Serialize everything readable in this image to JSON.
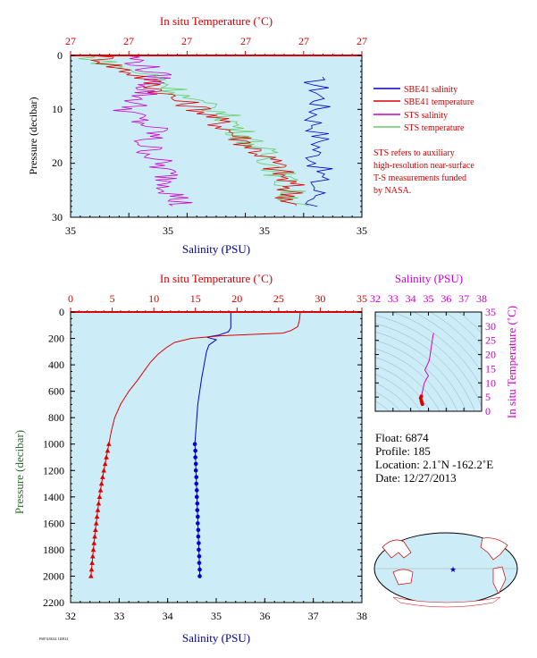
{
  "top_panel": {
    "top_axis_title": "In situ Temperature (˚C)",
    "top_tick_labels": [
      "27",
      "27",
      "27",
      "27",
      "27",
      "27"
    ],
    "left_axis_title": "Pressure (decibar)",
    "y_tick_labels": [
      "0",
      "10",
      "20",
      "30"
    ],
    "bottom_axis_title": "Salinity (PSU)",
    "bottom_tick_labels": [
      "35",
      "35",
      "35",
      "35"
    ],
    "legend": {
      "sbe_salinity": "SBE41 salinity",
      "sbe_temperature": "SBE41 temperature",
      "sts_salinity": "STS salinity",
      "sts_temperature": "STS temperature"
    },
    "note_lines": [
      "STS refers to auxiliary",
      "high-resolution near-surface",
      "T-S measurements funded",
      "by NASA."
    ]
  },
  "main_panel": {
    "top_axis_title": "In situ Temperature (˚C)",
    "top_tick_labels": [
      "0",
      "5",
      "10",
      "15",
      "20",
      "25",
      "30",
      "35"
    ],
    "left_axis_title": "Pressure (decibar)",
    "y_tick_labels": [
      "0",
      "200",
      "400",
      "600",
      "800",
      "1000",
      "1200",
      "1400",
      "1600",
      "1800",
      "2000",
      "2200"
    ],
    "bottom_axis_title": "Salinity (PSU)",
    "bottom_tick_labels": [
      "32",
      "33",
      "34",
      "35",
      "36",
      "37",
      "38"
    ]
  },
  "ts_panel": {
    "top_axis_title": "Salinity (PSU)",
    "top_tick_labels": [
      "32",
      "33",
      "34",
      "35",
      "36",
      "37",
      "38"
    ],
    "right_axis_title": "In situ Temperature (˚C)",
    "right_tick_labels": [
      "0",
      "5",
      "10",
      "15",
      "20",
      "25",
      "30",
      "35"
    ]
  },
  "info": {
    "float": "Float:  6874",
    "profile": "Profile:  185",
    "location": "Location:  2.1˚N  -162.2˚E",
    "date": "Date:  12/27/2013"
  },
  "footer_code": "F6874/6024 120814",
  "colors": {
    "plot_bg": "#ccedf7",
    "salinity": "#0000cc",
    "temperature": "#dd0000",
    "sts_salinity": "#cc00cc",
    "sts_temperature": "#66cc66",
    "axis_title_red": "#cc0000",
    "axis_title_green": "#2e6b2e",
    "axis_title_magenta": "#cc00cc"
  },
  "chart_data": [
    {
      "type": "line",
      "panel": "main_profile",
      "y_label": "Pressure (decibar)",
      "ylim": [
        0,
        2200
      ],
      "y_reversed": true,
      "series": [
        {
          "name": "Salinity (PSU)",
          "axis": "bottom",
          "xlim": [
            32,
            38
          ],
          "pressure": [
            0,
            60,
            120,
            150,
            175,
            190,
            210,
            250,
            300,
            400,
            500,
            600,
            700,
            800,
            900,
            1000,
            1050,
            1100,
            1150,
            1200,
            1250,
            1300,
            1350,
            1400,
            1450,
            1500,
            1550,
            1600,
            1650,
            1700,
            1750,
            1800,
            1850,
            1900,
            1950,
            2000
          ],
          "values": [
            35.3,
            35.3,
            35.3,
            35.25,
            35.05,
            34.8,
            35.0,
            34.85,
            34.8,
            34.75,
            34.7,
            34.66,
            34.62,
            34.6,
            34.58,
            34.56,
            34.57,
            34.57,
            34.58,
            34.58,
            34.59,
            34.59,
            34.6,
            34.6,
            34.61,
            34.61,
            34.62,
            34.62,
            34.63,
            34.63,
            34.64,
            34.64,
            34.65,
            34.65,
            34.66,
            34.66
          ]
        },
        {
          "name": "In situ Temperature (˚C)",
          "axis": "top",
          "xlim": [
            0,
            35
          ],
          "pressure": [
            0,
            60,
            110,
            140,
            160,
            180,
            200,
            230,
            270,
            320,
            380,
            450,
            520,
            600,
            700,
            800,
            900,
            1000,
            1050,
            1100,
            1150,
            1200,
            1250,
            1300,
            1350,
            1400,
            1450,
            1500,
            1550,
            1600,
            1650,
            1700,
            1750,
            1800,
            1850,
            1900,
            1950,
            2000
          ],
          "values": [
            27.6,
            27.5,
            27.3,
            26.5,
            25.5,
            18.0,
            14.5,
            12.5,
            11.5,
            10.5,
            9.6,
            8.8,
            8.0,
            7.0,
            6.0,
            5.3,
            4.9,
            4.6,
            4.45,
            4.3,
            4.15,
            4.0,
            3.85,
            3.72,
            3.6,
            3.48,
            3.37,
            3.27,
            3.17,
            3.08,
            2.99,
            2.9,
            2.82,
            2.74,
            2.66,
            2.59,
            2.52,
            2.45
          ]
        }
      ]
    },
    {
      "type": "line",
      "panel": "near_surface",
      "y_label": "Pressure (decibar)",
      "ylim": [
        0,
        30
      ],
      "y_reversed": true,
      "series": [
        {
          "name": "SBE41 salinity",
          "pressure": [
            4,
            6,
            8,
            10,
            12,
            14,
            16,
            18,
            20,
            22,
            24,
            26,
            28
          ],
          "values": [
            0.83,
            0.85,
            0.86,
            0.85,
            0.84,
            0.85,
            0.86,
            0.84,
            0.85,
            0.86,
            0.84,
            0.85,
            0.83
          ]
        },
        {
          "name": "SBE41 temperature",
          "pressure": [
            0,
            2,
            4,
            6,
            8,
            10,
            12,
            14,
            16,
            18,
            20,
            22,
            24,
            26,
            28
          ],
          "values": [
            0.1,
            0.15,
            0.25,
            0.3,
            0.35,
            0.45,
            0.5,
            0.55,
            0.6,
            0.65,
            0.7,
            0.72,
            0.75,
            0.76,
            0.76
          ]
        },
        {
          "name": "STS salinity",
          "pressure": [
            0,
            2,
            4,
            6,
            8,
            10,
            12,
            14,
            16,
            18,
            20,
            22,
            24,
            26,
            28
          ],
          "values": [
            0.2,
            0.25,
            0.3,
            0.27,
            0.24,
            0.2,
            0.23,
            0.3,
            0.25,
            0.28,
            0.3,
            0.33,
            0.35,
            0.36,
            0.38
          ]
        },
        {
          "name": "STS temperature",
          "pressure": [
            0,
            2,
            4,
            6,
            8,
            10,
            12,
            14,
            16,
            18,
            20,
            22,
            24,
            26,
            28
          ],
          "values": [
            0.05,
            0.15,
            0.3,
            0.35,
            0.4,
            0.5,
            0.55,
            0.58,
            0.62,
            0.66,
            0.7,
            0.72,
            0.74,
            0.76,
            0.77
          ]
        }
      ]
    },
    {
      "type": "scatter",
      "panel": "ts_diagram",
      "x_label": "Salinity (PSU)",
      "y_label": "In situ Temperature (˚C)",
      "xlim": [
        32,
        38
      ],
      "ylim": [
        0,
        35
      ],
      "points": [
        [
          35.3,
          27.6
        ],
        [
          35.25,
          26.5
        ],
        [
          35.05,
          18.0
        ],
        [
          34.8,
          14.5
        ],
        [
          35.0,
          12.5
        ],
        [
          34.85,
          11.0
        ],
        [
          34.75,
          9.6
        ],
        [
          34.7,
          8.0
        ],
        [
          34.66,
          7.0
        ],
        [
          34.6,
          5.3
        ],
        [
          34.56,
          4.6
        ],
        [
          34.6,
          3.7
        ],
        [
          34.63,
          3.0
        ],
        [
          34.66,
          2.5
        ]
      ]
    }
  ]
}
